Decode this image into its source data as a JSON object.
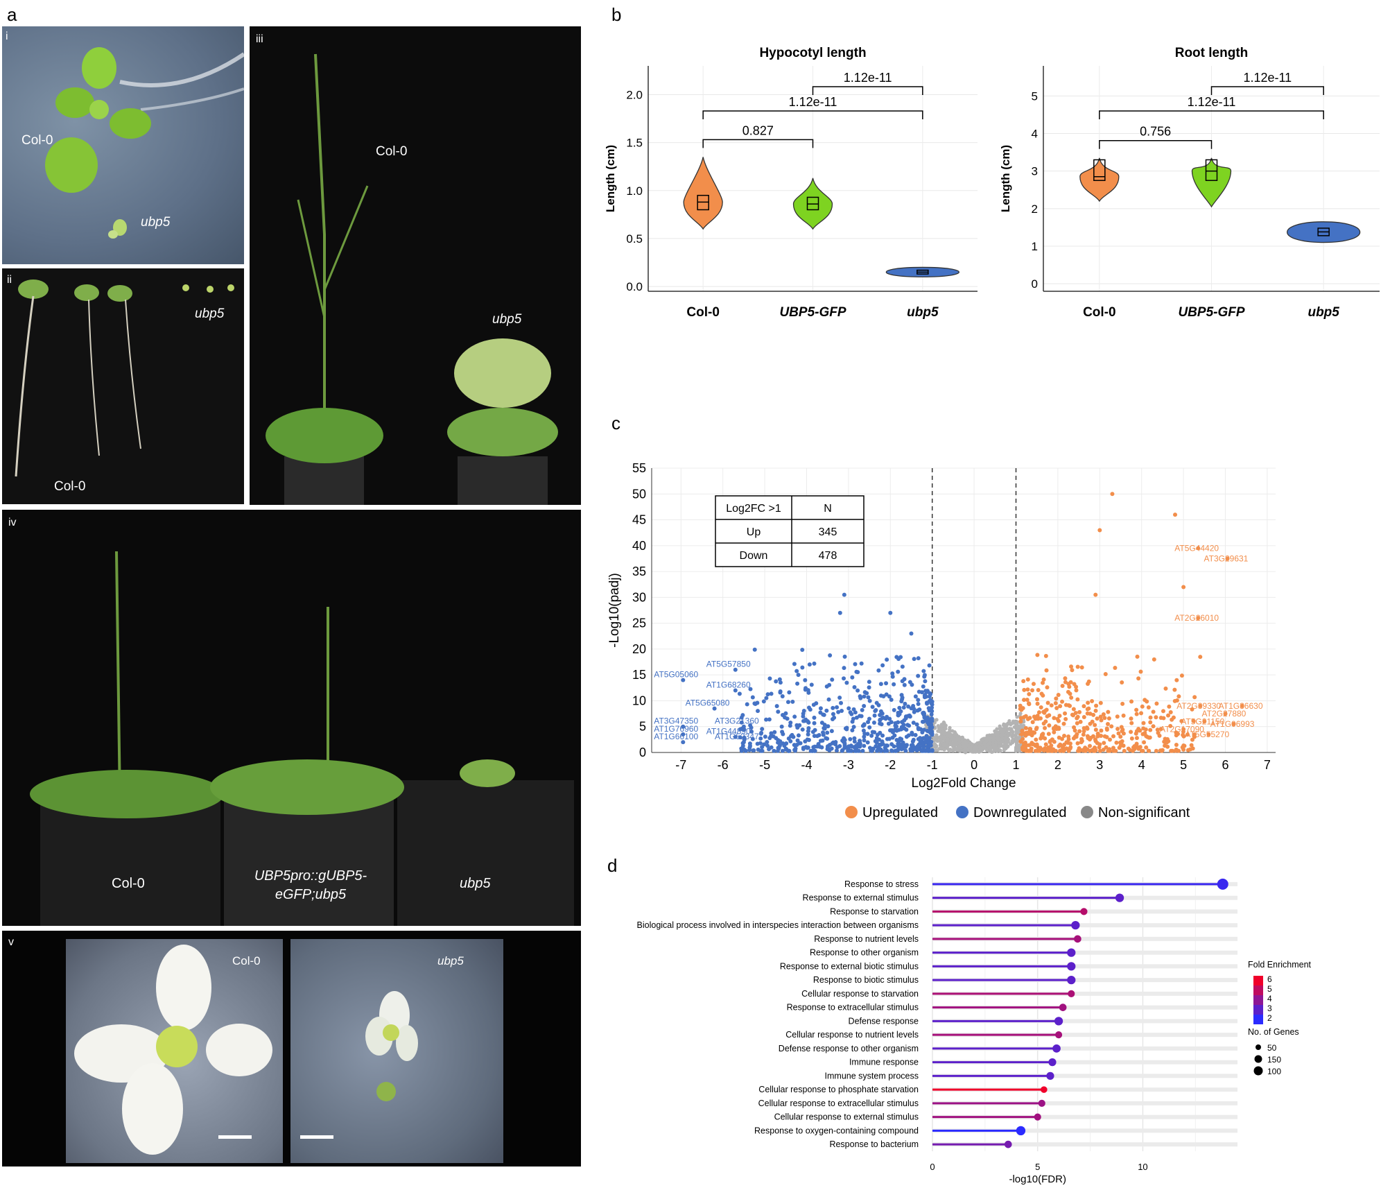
{
  "panel_letters": {
    "a": "a",
    "b": "b",
    "c": "c",
    "d": "d"
  },
  "photos": {
    "i": {
      "roman": "i",
      "col0": "Col-0",
      "mutant": "ubp5"
    },
    "ii": {
      "roman": "ii",
      "col0": "Col-0",
      "mutant": "ubp5"
    },
    "iii": {
      "roman": "iii",
      "col0": "Col-0",
      "mutant": "ubp5"
    },
    "iv": {
      "roman": "iv",
      "col0": "Col-0",
      "complement_line1": "UBP5pro::gUBP5-",
      "complement_line2": "eGFP;ubp5",
      "mutant": "ubp5"
    },
    "v": {
      "roman": "v",
      "col0": "Col-0",
      "mutant": "ubp5"
    }
  },
  "colors": {
    "col0": "#f28e4b",
    "ubp5gfp": "#7ed321",
    "ubp5": "#4472c4",
    "up": "#f28e4b",
    "down": "#4472c4",
    "ns": "#b3b3b3",
    "fe_high": "#f0002a",
    "fe_low": "#2b2bff"
  },
  "chart_data": [
    {
      "type": "violin",
      "title": "Hypocotyl length",
      "ylabel": "Length (cm)",
      "categories": [
        "Col-0",
        "UBP5-GFP",
        "ubp5"
      ],
      "ylim": [
        -0.05,
        2.3
      ],
      "yticks": [
        "0.0",
        "0.5",
        "1.0",
        "1.5",
        "2.0"
      ],
      "groups": [
        {
          "name": "Col-0",
          "min": 0.6,
          "q1": 0.8,
          "median": 0.88,
          "q3": 0.95,
          "max": 1.35
        },
        {
          "name": "UBP5-GFP",
          "min": 0.6,
          "q1": 0.8,
          "median": 0.86,
          "q3": 0.93,
          "max": 1.13
        },
        {
          "name": "ubp5",
          "min": 0.1,
          "q1": 0.13,
          "median": 0.15,
          "q3": 0.17,
          "max": 0.2
        }
      ],
      "comparisons": [
        {
          "from": 0,
          "to": 1,
          "p": "0.827"
        },
        {
          "from": 0,
          "to": 2,
          "p": "1.12e-11"
        },
        {
          "from": 1,
          "to": 2,
          "p": "1.12e-11"
        }
      ]
    },
    {
      "type": "violin",
      "title": "Root length",
      "ylabel": "Length (cm)",
      "categories": [
        "Col-0",
        "UBP5-GFP",
        "ubp5"
      ],
      "ylim": [
        -0.2,
        5.8
      ],
      "yticks": [
        "0",
        "1",
        "2",
        "3",
        "4",
        "5"
      ],
      "groups": [
        {
          "name": "Col-0",
          "min": 2.2,
          "q1": 2.75,
          "median": 2.85,
          "q3": 3.3,
          "max": 3.35
        },
        {
          "name": "UBP5-GFP",
          "min": 2.05,
          "q1": 2.75,
          "median": 3.0,
          "q3": 3.3,
          "max": 3.35
        },
        {
          "name": "ubp5",
          "min": 1.1,
          "q1": 1.28,
          "median": 1.38,
          "q3": 1.48,
          "max": 1.65
        }
      ],
      "comparisons": [
        {
          "from": 0,
          "to": 1,
          "p": "0.756"
        },
        {
          "from": 0,
          "to": 2,
          "p": "1.12e-11"
        },
        {
          "from": 1,
          "to": 2,
          "p": "1.12e-11"
        }
      ]
    },
    {
      "type": "scatter",
      "xlabel": "Log2Fold Change",
      "ylabel": "-Log10(padj)",
      "xlim": [
        -7.7,
        7.2
      ],
      "ylim": [
        0,
        55
      ],
      "xticks": [
        "-7",
        "-6",
        "-5",
        "-4",
        "-3",
        "-2",
        "-1",
        "0",
        "1",
        "2",
        "3",
        "4",
        "5",
        "6",
        "7"
      ],
      "yticks": [
        "0",
        "5",
        "10",
        "15",
        "20",
        "25",
        "30",
        "35",
        "40",
        "45",
        "50",
        "55"
      ],
      "thresholds": [
        -1,
        1
      ],
      "table": {
        "header": [
          "Log2FC >1",
          "N"
        ],
        "rows": [
          [
            "Up",
            "345"
          ],
          [
            "Down",
            "478"
          ]
        ]
      },
      "legend": [
        "Upregulated",
        "Downregulated",
        "Non-significant"
      ],
      "labels_down": [
        {
          "gene": "AT5G57850",
          "x": -5.7,
          "y": 16
        },
        {
          "gene": "AT5G05060",
          "x": -6.95,
          "y": 14
        },
        {
          "gene": "AT1G68260",
          "x": -5.7,
          "y": 12
        },
        {
          "gene": "AT5G65080",
          "x": -6.2,
          "y": 8.5
        },
        {
          "gene": "AT3G21360",
          "x": -5.5,
          "y": 5
        },
        {
          "gene": "AT3G47350",
          "x": -6.95,
          "y": 5
        },
        {
          "gene": "AT1G76960",
          "x": -6.95,
          "y": 3.5
        },
        {
          "gene": "AT1G44890",
          "x": -5.7,
          "y": 3
        },
        {
          "gene": "AT1G66100",
          "x": -6.95,
          "y": 2
        },
        {
          "gene": "AT1G52347",
          "x": -5.5,
          "y": 2
        }
      ],
      "labels_up": [
        {
          "gene": "AT5G44420",
          "x": 5.35,
          "y": 39.5
        },
        {
          "gene": "AT3G29631",
          "x": 6.05,
          "y": 37.5
        },
        {
          "gene": "AT2G26010",
          "x": 5.35,
          "y": 26
        },
        {
          "gene": "AT2G39330",
          "x": 5.4,
          "y": 9
        },
        {
          "gene": "AT1G36630",
          "x": 6.4,
          "y": 9
        },
        {
          "gene": "AT2G27880",
          "x": 6.0,
          "y": 7.5
        },
        {
          "gene": "AT5G21150",
          "x": 5.5,
          "y": 6
        },
        {
          "gene": "AT1G06993",
          "x": 6.2,
          "y": 5.5
        },
        {
          "gene": "AT2G17090",
          "x": 5.0,
          "y": 4.5
        },
        {
          "gene": "AT5G55270",
          "x": 5.6,
          "y": 3.5
        }
      ]
    },
    {
      "type": "lollipop",
      "xlabel": "-log10(FDR)",
      "xlim": [
        0,
        14.5
      ],
      "xticks": [
        "0",
        "5",
        "10"
      ],
      "categories": [
        "Response to stress",
        "Response to external stimulus",
        "Response to starvation",
        "Biological process involved in interspecies interaction between organisms",
        "Response to nutrient levels",
        "Response to other organism",
        "Response to external biotic stimulus",
        "Response to biotic stimulus",
        "Cellular response to starvation",
        "Response to extracellular stimulus",
        "Defense response",
        "Cellular response to nutrient levels",
        "Defense response to other organism",
        "Immune response",
        "Immune system process",
        "Cellular response to phosphate starvation",
        "Cellular response to extracellular stimulus",
        "Cellular response to external stimulus",
        "Response to oxygen-containing compound",
        "Response to bacterium"
      ],
      "values": [
        13.8,
        8.9,
        7.2,
        6.8,
        6.9,
        6.6,
        6.6,
        6.6,
        6.6,
        6.2,
        6.0,
        6.0,
        5.9,
        5.7,
        5.6,
        5.3,
        5.2,
        5.0,
        4.2,
        3.6
      ],
      "fold_enrichment": [
        2.3,
        3.0,
        4.8,
        3.0,
        4.5,
        3.0,
        3.0,
        3.0,
        4.6,
        4.4,
        3.0,
        4.5,
        3.0,
        3.0,
        3.0,
        6.0,
        4.3,
        4.4,
        2.0,
        3.5
      ],
      "genes": [
        150,
        80,
        40,
        80,
        50,
        80,
        80,
        80,
        40,
        50,
        80,
        40,
        70,
        60,
        60,
        30,
        40,
        40,
        100,
        50
      ],
      "legend_fold": {
        "title": "Fold Enrichment",
        "ticks": [
          "6",
          "5",
          "4",
          "3",
          "2"
        ]
      },
      "legend_genes": {
        "title": "No. of Genes",
        "entries": [
          "50",
          "150",
          "100"
        ]
      }
    }
  ]
}
